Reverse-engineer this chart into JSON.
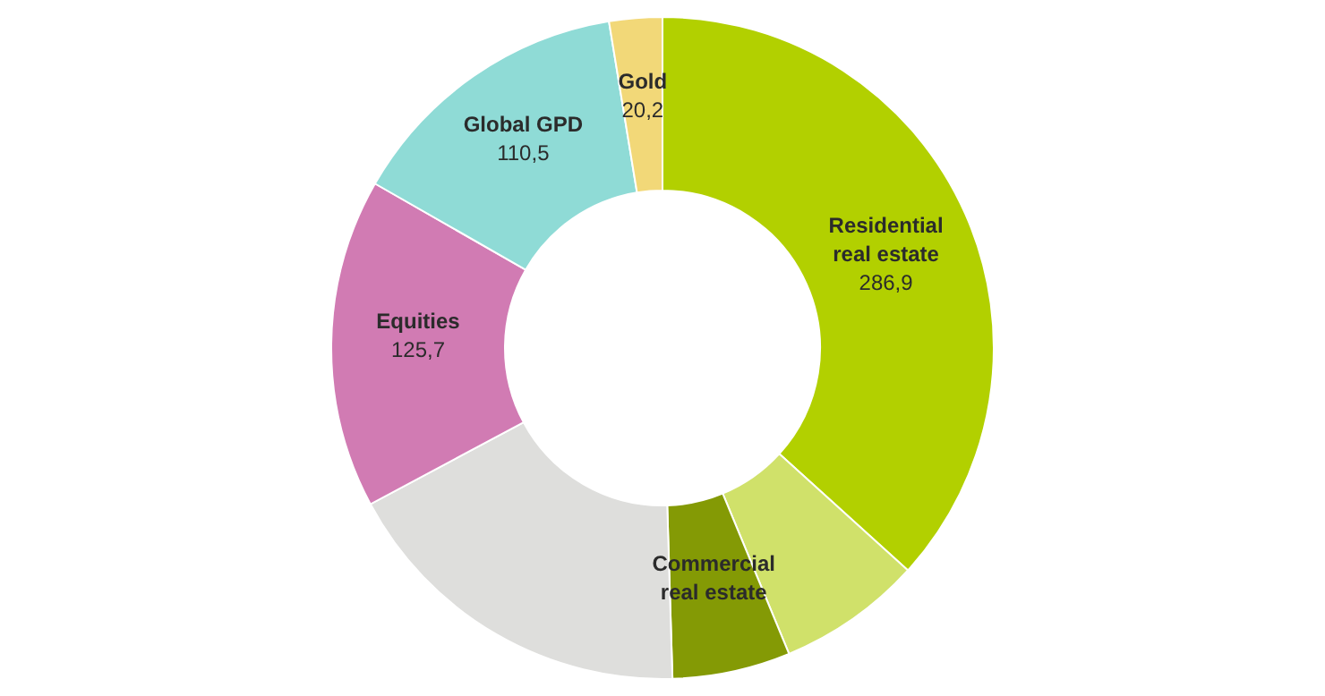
{
  "chart_data": {
    "type": "donut",
    "categories": [
      "Residential real estate",
      null,
      "Commercial real estate",
      null,
      "Equities",
      "Global GPD",
      "Gold"
    ],
    "values": [
      286.9,
      55,
      45,
      138,
      125.7,
      110.5,
      20.2
    ],
    "value_labels": [
      "286,9",
      null,
      null,
      null,
      "125,7",
      "110,5",
      "20,2"
    ],
    "colors": [
      "#b2d000",
      "#d0e16a",
      "#849a05",
      "#dededc",
      "#d17bb3",
      "#8fdbd6",
      "#f2d878"
    ]
  }
}
